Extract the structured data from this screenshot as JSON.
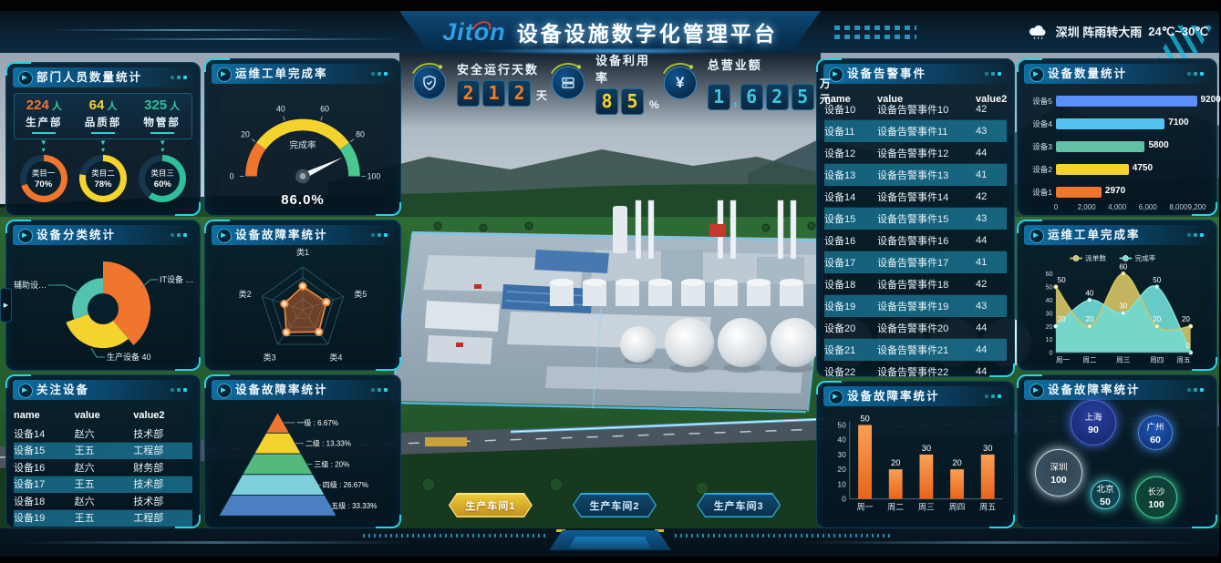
{
  "header": {
    "logo_parts": [
      "Jit",
      "o",
      "n"
    ],
    "title": "设备设施数字化管理平台",
    "weather": {
      "icon": "cloud-rain-icon",
      "text": "深圳 阵雨转大雨",
      "temp": "24℃~30℃"
    }
  },
  "kpis": [
    {
      "label": "安全运行天数",
      "value": "212",
      "unit": "天",
      "color": "#f07d22",
      "icon": "shield-icon"
    },
    {
      "label": "设备利用率",
      "value": "85",
      "unit": "%",
      "color": "#f5d42e",
      "icon": "equipment-icon"
    },
    {
      "label": "总营业额",
      "value": "1,625",
      "unit": "万元",
      "color": "#3ec6dc",
      "icon": "yen-icon"
    }
  ],
  "panels": {
    "dept": {
      "title": "部门人员数量统计",
      "stats": [
        {
          "value": "224",
          "unit": "人",
          "label": "生产部",
          "color": "#f0762d"
        },
        {
          "value": "64",
          "unit": "人",
          "label": "品质部",
          "color": "#f5d32f"
        },
        {
          "value": "325",
          "unit": "人",
          "label": "物管部",
          "color": "#2fbf9a"
        }
      ],
      "donuts": [
        {
          "label": "类目一",
          "percent": 70,
          "color": "#f0762d"
        },
        {
          "label": "类目二",
          "percent": 78,
          "color": "#f5d32f"
        },
        {
          "label": "类目三",
          "percent": 60,
          "color": "#2fbf9a"
        }
      ]
    },
    "category": {
      "title": "设备分类统计",
      "chart_data": {
        "type": "pie",
        "segments": [
          {
            "label": "IT设备 …",
            "color": "#f0762d",
            "sweep": 140,
            "radius_ratio": 1.0
          },
          {
            "label": "生产设备 40",
            "color": "#f5d32f",
            "sweep": 110,
            "radius_ratio": 0.83
          },
          {
            "label": "辅助设…",
            "color": "#52c4ad",
            "sweep": 110,
            "radius_ratio": 0.65
          }
        ]
      }
    },
    "focus": {
      "title": "关注设备",
      "headers": [
        "name",
        "value",
        "value2"
      ],
      "rows": [
        [
          "设备14",
          "赵六",
          "技术部"
        ],
        [
          "设备15",
          "王五",
          "工程部"
        ],
        [
          "设备16",
          "赵六",
          "财务部"
        ],
        [
          "设备17",
          "王五",
          "技术部"
        ],
        [
          "设备18",
          "赵六",
          "技术部"
        ],
        [
          "设备19",
          "王五",
          "工程部"
        ]
      ]
    },
    "gauge": {
      "title": "运维工单完成率",
      "label": "完成率",
      "value": 86.0,
      "display": "86.0%",
      "ticks": [
        0,
        20,
        40,
        60,
        80,
        100
      ],
      "zones": [
        {
          "to": 20,
          "color": "#f0762d"
        },
        {
          "to": 80,
          "color": "#f5d32f"
        },
        {
          "to": 100,
          "color": "#49c78e"
        }
      ]
    },
    "radar": {
      "title": "设备故障率统计",
      "axes": [
        "类1",
        "类2",
        "类3",
        "类4",
        "类5"
      ],
      "values": [
        55,
        45,
        65,
        64,
        58
      ],
      "max": 100,
      "color": "#f08a3d"
    },
    "pyramid": {
      "title": "设备故障率统计",
      "levels": [
        {
          "label": "一级 : 6.67%",
          "color": "#f0762d"
        },
        {
          "label": "二级 : 13.33%",
          "color": "#f5d32f"
        },
        {
          "label": "三级 : 20%",
          "color": "#53b97d"
        },
        {
          "label": "四级 : 26.67%",
          "color": "#7fd0dd"
        },
        {
          "label": "五级 : 33.33%",
          "color": "#4a7fc1"
        }
      ]
    },
    "alarms": {
      "title": "设备告警事件",
      "headers": [
        "name",
        "value",
        "value2"
      ],
      "rows": [
        [
          "设备10",
          "设备告警事件10",
          "42"
        ],
        [
          "设备11",
          "设备告警事件11",
          "43"
        ],
        [
          "设备12",
          "设备告警事件12",
          "44"
        ],
        [
          "设备13",
          "设备告警事件13",
          "41"
        ],
        [
          "设备14",
          "设备告警事件14",
          "42"
        ],
        [
          "设备15",
          "设备告警事件15",
          "43"
        ],
        [
          "设备16",
          "设备告警事件16",
          "44"
        ],
        [
          "设备17",
          "设备告警事件17",
          "41"
        ],
        [
          "设备18",
          "设备告警事件18",
          "42"
        ],
        [
          "设备19",
          "设备告警事件19",
          "43"
        ],
        [
          "设备20",
          "设备告警事件20",
          "44"
        ],
        [
          "设备21",
          "设备告警事件21",
          "44"
        ],
        [
          "设备22",
          "设备告警事件22",
          "44"
        ]
      ]
    },
    "failure_bar": {
      "title": "设备故障率统计",
      "chart_data": {
        "type": "bar",
        "categories": [
          "周一",
          "周二",
          "周三",
          "周四",
          "周五"
        ],
        "values": [
          50,
          20,
          30,
          20,
          30
        ],
        "yticks": [
          0,
          10,
          20,
          30,
          40,
          50
        ],
        "bar_color_top": "#f9a055",
        "bar_color_bottom": "#e8641a"
      }
    },
    "device_count": {
      "title": "设备数量统计",
      "chart_data": {
        "type": "bar-horizontal",
        "categories": [
          "设备5",
          "设备4",
          "设备3",
          "设备2",
          "设备1"
        ],
        "values": [
          9200,
          7100,
          5800,
          4750,
          2970
        ],
        "colors": [
          "#5b8ff9",
          "#54c3ef",
          "#60c1a4",
          "#f5d32f",
          "#f0762d"
        ],
        "xticks": [
          {
            "label": "0",
            "value": 0
          },
          {
            "label": "2,000",
            "value": 2000
          },
          {
            "label": "4,000",
            "value": 4000
          },
          {
            "label": "6,000",
            "value": 6000
          },
          {
            "label": "8,000",
            "value": 8000
          },
          {
            "label": "9,200",
            "value": 9200
          }
        ]
      }
    },
    "workorder": {
      "title": "运维工单完成率",
      "chart_data": {
        "type": "area",
        "x": [
          "周一",
          "周二",
          "周三",
          "周四",
          "周五"
        ],
        "series": [
          {
            "name": "派单数",
            "color": "#d6c45e",
            "fill": "#cdbd63",
            "values": [
              50,
              20,
              60,
              20,
              20
            ]
          },
          {
            "name": "完成率",
            "color": "#7fe3de",
            "fill": "#6fd9d4",
            "values": [
              20,
              40,
              30,
              50,
              0
            ]
          }
        ],
        "yticks": [
          0,
          10,
          20,
          30,
          40,
          50,
          60
        ]
      }
    },
    "bubbles": {
      "title": "设备故障率统计",
      "chart_data": {
        "type": "bubble",
        "items": [
          {
            "label": "上海",
            "value": "90",
            "x": 75,
            "y": 19,
            "d": 48,
            "inner": "#2a3f9e",
            "outer": "#16246b",
            "rim": "#4a6ae0"
          },
          {
            "label": "广州",
            "value": "60",
            "x": 143,
            "y": 30,
            "d": 36,
            "inner": "#1e57b4",
            "outer": "#0f3070",
            "rim": "#4a8ae0"
          },
          {
            "label": "深圳",
            "value": "100",
            "x": 37,
            "y": 74,
            "d": 50,
            "inner": "rgba(150,175,195,0.28)",
            "outer": "rgba(110,140,165,0.55)",
            "rim": "#c5d8e6"
          },
          {
            "label": "北京",
            "value": "50",
            "x": 88,
            "y": 98,
            "d": 30,
            "inner": "rgba(40,160,170,0.25)",
            "outer": "rgba(28,118,132,0.55)",
            "rim": "#4fd4da"
          },
          {
            "label": "长沙",
            "value": "100",
            "x": 144,
            "y": 101,
            "d": 44,
            "inner": "rgba(32,142,96,0.30)",
            "outer": "rgba(18,108,74,0.60)",
            "rim": "#3fd49a"
          }
        ]
      }
    }
  },
  "workshops": [
    {
      "label": "生产车间1",
      "active": true
    },
    {
      "label": "生产车间2",
      "active": false
    },
    {
      "label": "生产车间3",
      "active": false
    }
  ]
}
